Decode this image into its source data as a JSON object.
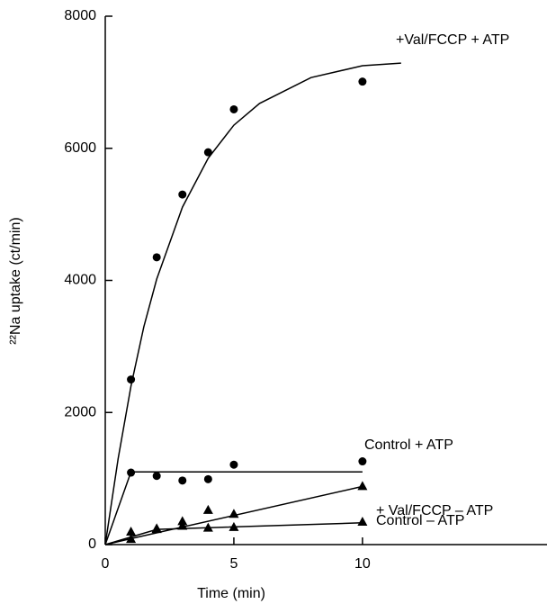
{
  "chart_data": {
    "type": "scatter",
    "xlabel": "Time (min)",
    "ylabel": "²²Na uptake (ct/min)",
    "xlim": [
      0,
      17
    ],
    "ylim": [
      0,
      8000
    ],
    "xticks": [
      0,
      5,
      10
    ],
    "yticks": [
      0,
      2000,
      4000,
      6000,
      8000
    ],
    "grid": false,
    "series": [
      {
        "name": "+Val/FCCP + ATP",
        "color": "#000000",
        "marker": "circle",
        "x": [
          1,
          2,
          3,
          4,
          5,
          10
        ],
        "values": [
          2500,
          4350,
          5300,
          5940,
          6590,
          7010
        ],
        "fit": {
          "x": [
            0,
            0.5,
            1,
            1.5,
            2,
            3,
            4,
            5,
            6,
            8,
            10,
            11.5
          ],
          "values": [
            0,
            1300,
            2400,
            3300,
            4020,
            5110,
            5850,
            6350,
            6680,
            7070,
            7250,
            7290
          ]
        }
      },
      {
        "name": "Control + ATP",
        "color": "#000000",
        "marker": "circle",
        "x": [
          1,
          2,
          3,
          4,
          5,
          10
        ],
        "values": [
          1090,
          1040,
          970,
          990,
          1210,
          1260
        ],
        "fit": {
          "x": [
            0,
            1,
            10
          ],
          "values": [
            0,
            1100,
            1100
          ]
        }
      },
      {
        "name": "+ Val/FCCP – ATP",
        "color": "#000000",
        "marker": "triangle",
        "x": [
          1,
          2,
          3,
          4,
          5,
          10
        ],
        "values": [
          190,
          240,
          350,
          520,
          460,
          880
        ],
        "fit": {
          "x": [
            0,
            1,
            10
          ],
          "values": [
            0,
            90,
            880
          ]
        }
      },
      {
        "name": "Control – ATP",
        "color": "#000000",
        "marker": "triangle",
        "x": [
          1,
          2,
          3,
          4,
          5,
          10
        ],
        "values": [
          80,
          230,
          280,
          250,
          260,
          340
        ],
        "fit": {
          "x": [
            0,
            2,
            10
          ],
          "values": [
            0,
            230,
            330
          ]
        }
      }
    ]
  }
}
